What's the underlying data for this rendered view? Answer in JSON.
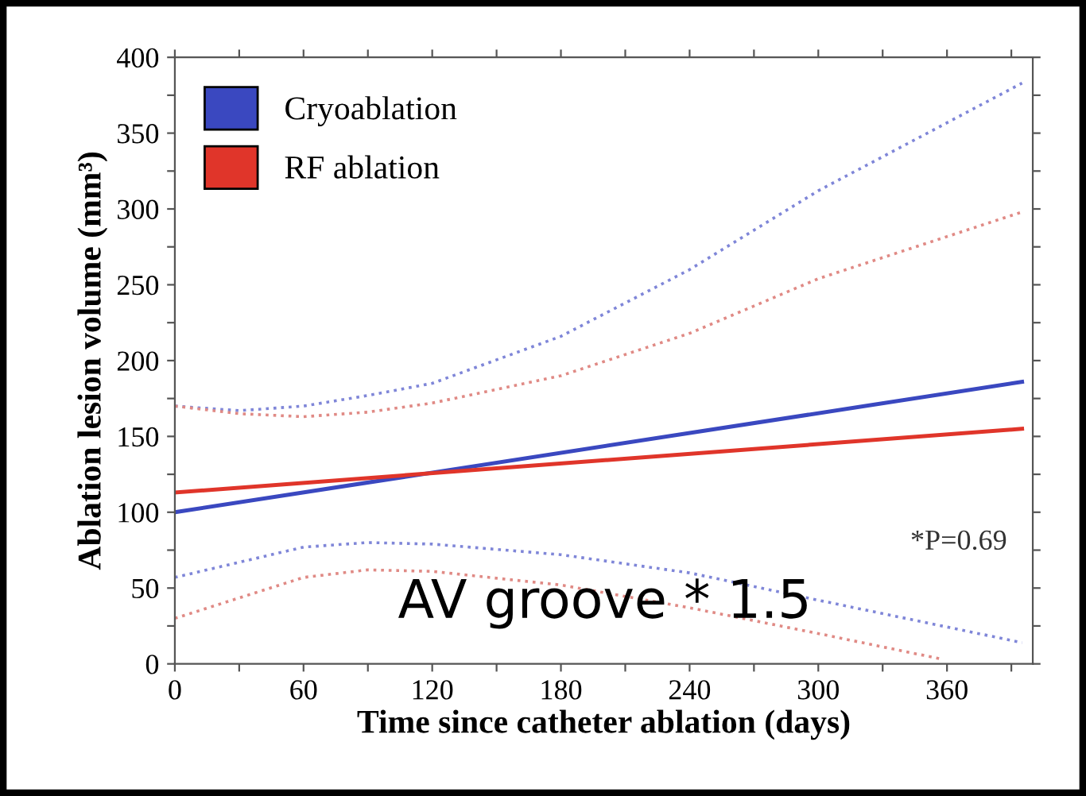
{
  "chart_data": {
    "type": "line",
    "xlabel": "Time since catheter ablation (days)",
    "ylabel": "Ablation lesion volume (mm³)",
    "xlim": [
      0,
      400
    ],
    "ylim": [
      0,
      400
    ],
    "xticks": [
      0,
      {
        "value": 30,
        "label": null
      },
      60,
      {
        "value": 90,
        "label": null
      },
      120,
      {
        "value": 150,
        "label": null
      },
      180,
      {
        "value": 210,
        "label": null
      },
      240,
      {
        "value": 270,
        "label": null
      },
      300,
      {
        "value": 330,
        "label": null
      },
      360,
      {
        "value": 390,
        "label": null
      }
    ],
    "yticks": [
      0,
      {
        "value": 25,
        "label": null
      },
      50,
      {
        "value": 75,
        "label": null
      },
      100,
      {
        "value": 125,
        "label": null
      },
      150,
      {
        "value": 175,
        "label": null
      },
      200,
      {
        "value": 225,
        "label": null
      },
      250,
      {
        "value": 275,
        "label": null
      },
      300,
      {
        "value": 325,
        "label": null
      },
      350,
      {
        "value": 375,
        "label": null
      },
      400
    ],
    "grid": false,
    "legend": "top left",
    "marker": "none",
    "series": [
      {
        "name": "Cryoablation",
        "color": "#3a48c0",
        "line_style": "solid",
        "x": [
          0,
          395
        ],
        "values": [
          100,
          186
        ]
      },
      {
        "name": "RF ablation",
        "color": "#e0352a",
        "line_style": "solid",
        "x": [
          0,
          395
        ],
        "values": [
          113,
          155
        ]
      },
      {
        "color": "#7f86d8",
        "line_style": "dotted",
        "x": [
          0,
          30,
          60,
          90,
          120,
          180,
          240,
          300,
          395
        ],
        "values": [
          170,
          167,
          170,
          177,
          185,
          216,
          260,
          312,
          383
        ]
      },
      {
        "color": "#e08a85",
        "line_style": "dotted",
        "x": [
          0,
          30,
          60,
          90,
          120,
          180,
          240,
          300,
          395
        ],
        "values": [
          170,
          165,
          163,
          166,
          172,
          190,
          218,
          254,
          298
        ]
      },
      {
        "color": "#7f86d8",
        "line_style": "dotted",
        "x": [
          0,
          60,
          90,
          120,
          180,
          240,
          300,
          395
        ],
        "values": [
          57,
          77,
          80,
          79,
          72,
          60,
          42,
          14
        ]
      },
      {
        "color": "#e08a85",
        "line_style": "dotted",
        "x": [
          0,
          60,
          90,
          120,
          180,
          240,
          300,
          358
        ],
        "values": [
          30,
          57,
          62,
          61,
          52,
          37,
          20,
          3
        ]
      }
    ],
    "annotations": [
      "*P=0.69",
      "AV groove * 1.5"
    ]
  }
}
